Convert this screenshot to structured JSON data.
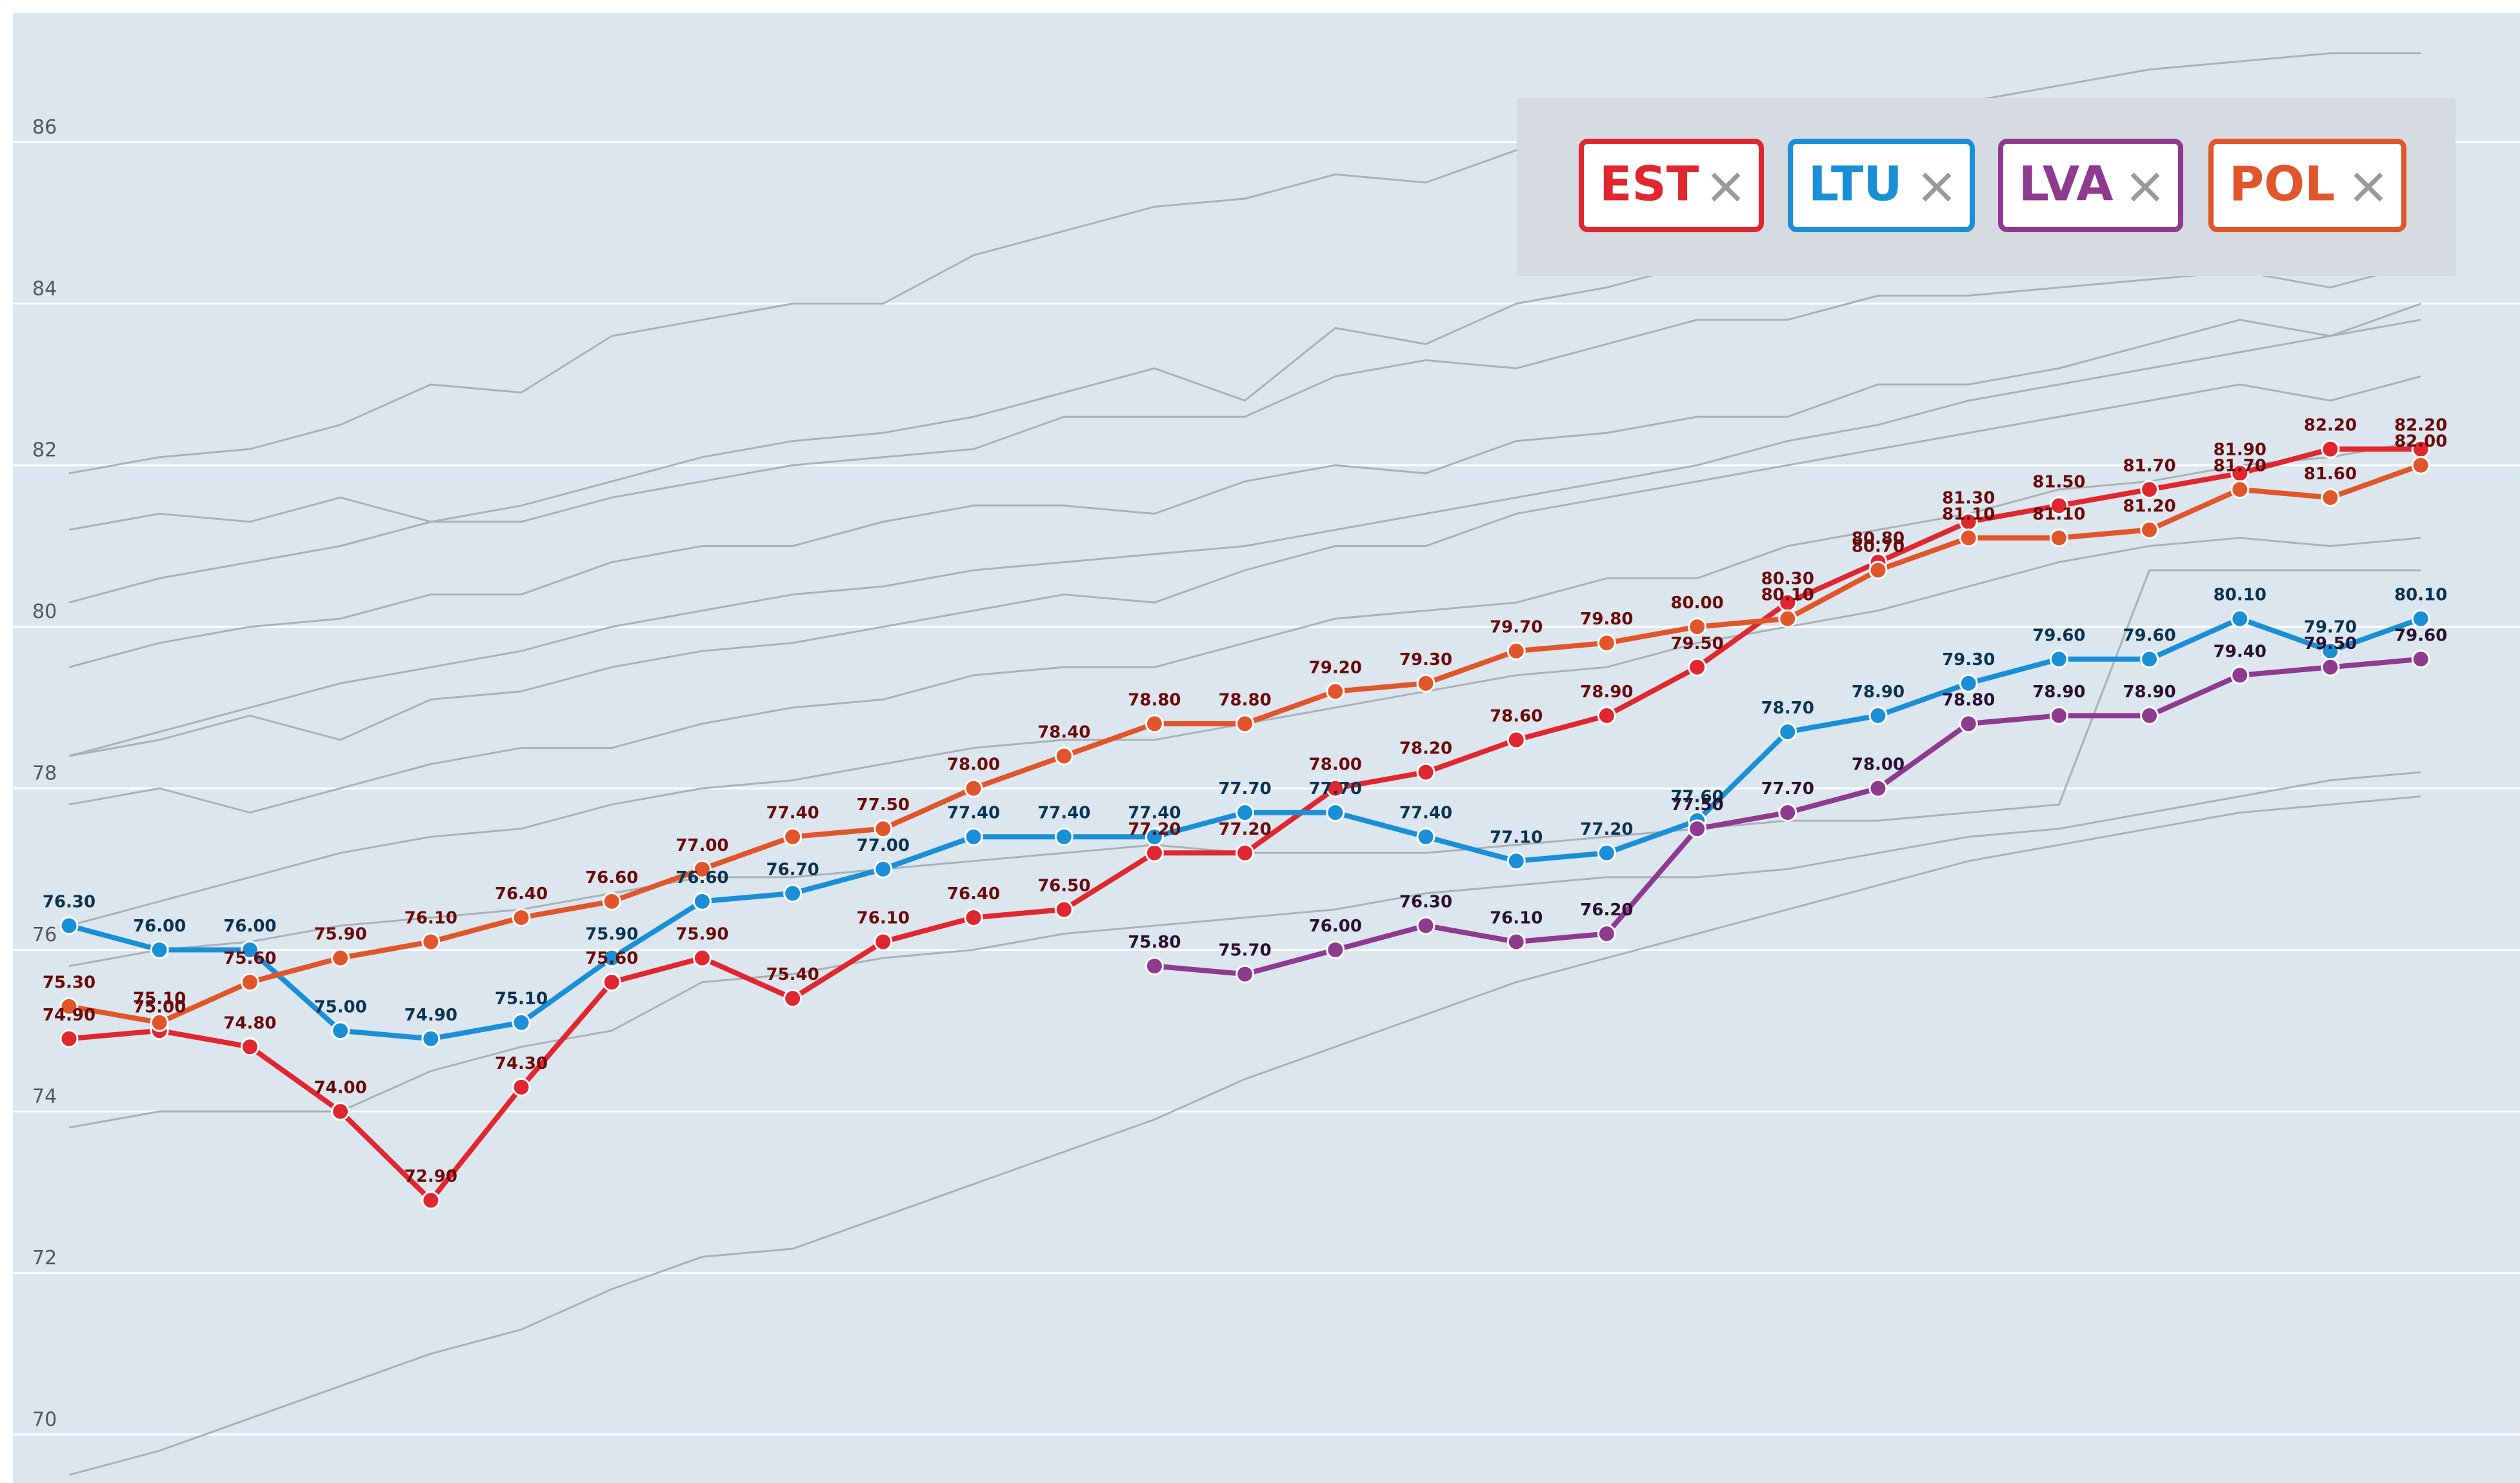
{
  "chart_data": {
    "type": "line",
    "categories": [
      null,
      null,
      null,
      null,
      null,
      null,
      null,
      null,
      null,
      null,
      null,
      null,
      null,
      null,
      null,
      null,
      null,
      null,
      null,
      null,
      null,
      null,
      null,
      null,
      null,
      null,
      null
    ],
    "ylim": [
      69.4,
      87.6
    ],
    "yticks": [
      70,
      72,
      74,
      76,
      78,
      80,
      82,
      84,
      86
    ],
    "grid": true,
    "legend": {
      "position": "top-right"
    },
    "series": [
      {
        "name": "EST",
        "color": "#e0262f",
        "label_color": "#6b0a0a",
        "values": [
          74.9,
          75.0,
          74.8,
          74.0,
          72.9,
          74.3,
          75.6,
          75.9,
          75.4,
          76.1,
          76.4,
          76.5,
          77.2,
          77.2,
          78.0,
          78.2,
          78.6,
          78.9,
          79.5,
          80.3,
          80.8,
          81.3,
          81.5,
          81.7,
          81.9,
          82.2,
          82.2
        ],
        "value_labels": [
          "74.90",
          "75.00",
          "74.80",
          "74.00",
          "72.90",
          "74.30",
          "75.60",
          "75.90",
          "75.40",
          "76.10",
          "76.40",
          "76.50",
          "77.20",
          "77.20",
          "78.00",
          "78.20",
          "78.60",
          "78.90",
          "79.50",
          "80.30",
          "80.80",
          "81.30",
          "81.50",
          "81.70",
          "81.90",
          "82.20",
          "82.20"
        ]
      },
      {
        "name": "LTU",
        "color": "#1a8fd6",
        "label_color": "#0b3350",
        "values": [
          76.3,
          76.0,
          76.0,
          75.0,
          74.9,
          75.1,
          75.9,
          76.6,
          76.7,
          77.0,
          77.4,
          77.4,
          77.4,
          77.7,
          77.7,
          77.4,
          77.1,
          77.2,
          77.6,
          78.7,
          78.9,
          79.3,
          79.6,
          79.6,
          80.1,
          79.7,
          80.1
        ],
        "value_labels": [
          "76.30",
          "76.00",
          "76.00",
          "75.00",
          "74.90",
          "75.10",
          "75.90",
          "76.60",
          "76.70",
          "77.00",
          "77.40",
          "77.40",
          "77.40",
          "77.70",
          "77.70",
          "77.40",
          "77.10",
          "77.20",
          "77.60",
          "78.70",
          "78.90",
          "79.30",
          "79.60",
          "79.60",
          "80.10",
          "79.70",
          "80.10"
        ]
      },
      {
        "name": "LVA",
        "color": "#8e3a8e",
        "label_color": "#2a1030",
        "values": [
          null,
          null,
          null,
          null,
          null,
          null,
          null,
          null,
          null,
          null,
          null,
          null,
          75.8,
          75.7,
          76.0,
          76.3,
          76.1,
          76.2,
          77.5,
          77.7,
          78.0,
          78.8,
          78.9,
          78.9,
          79.4,
          79.5,
          79.6
        ],
        "value_labels": [
          null,
          null,
          null,
          null,
          null,
          null,
          null,
          null,
          null,
          null,
          null,
          null,
          "75.80",
          "75.70",
          "76.00",
          "76.30",
          "76.10",
          "76.20",
          "77.50",
          "77.70",
          "78.00",
          "78.80",
          "78.90",
          "78.90",
          "79.40",
          "79.50",
          "79.60"
        ]
      },
      {
        "name": "POL",
        "color": "#e0562a",
        "label_color": "#6b0a0a",
        "values": [
          75.3,
          75.1,
          75.6,
          75.9,
          76.1,
          76.4,
          76.6,
          77.0,
          77.4,
          77.5,
          78.0,
          78.4,
          78.8,
          78.8,
          79.2,
          79.3,
          79.7,
          79.8,
          80.0,
          80.1,
          80.7,
          81.1,
          81.1,
          81.2,
          81.7,
          81.6,
          82.0
        ],
        "value_labels": [
          "75.30",
          "75.10",
          "75.60",
          "75.90",
          "76.10",
          "76.40",
          "76.60",
          "77.00",
          "77.40",
          "77.50",
          "78.00",
          "78.40",
          "78.80",
          "78.80",
          "79.20",
          "79.30",
          "79.70",
          "79.80",
          "80.00",
          "80.10",
          "80.70",
          "81.10",
          "81.10",
          "81.20",
          "81.70",
          "81.60",
          "82.00"
        ]
      }
    ],
    "background_color": "#a9b1b8",
    "background_series": [
      {
        "values": [
          81.9,
          82.1,
          82.2,
          82.5,
          83.0,
          82.9,
          83.6,
          83.8,
          84.0,
          84.0,
          84.6,
          84.9,
          85.2,
          85.3,
          85.6,
          85.5,
          85.9,
          86.0,
          86.2,
          86.3,
          86.5,
          86.5,
          86.7,
          86.9,
          87.0,
          87.1,
          87.1
        ]
      },
      {
        "values": [
          69.5,
          69.8,
          70.2,
          70.6,
          71.0,
          71.3,
          71.8,
          72.2,
          72.3,
          72.7,
          73.1,
          73.5,
          73.9,
          74.4,
          74.8,
          75.2,
          75.6,
          75.9,
          76.2,
          76.5,
          76.8,
          77.1,
          77.3,
          77.5,
          77.7,
          77.8,
          77.9
        ]
      },
      {
        "values": [
          73.8,
          74.0,
          74.0,
          74.0,
          74.5,
          74.8,
          75.0,
          75.6,
          75.7,
          75.9,
          76.0,
          76.2,
          76.3,
          76.4,
          76.5,
          76.7,
          76.8,
          76.9,
          76.9,
          77.0,
          77.2,
          77.4,
          77.5,
          77.7,
          77.9,
          78.1,
          78.2
        ]
      },
      {
        "values": [
          78.4,
          78.7,
          79.0,
          79.3,
          79.5,
          79.7,
          80.0,
          80.2,
          80.4,
          80.5,
          80.7,
          80.8,
          80.9,
          81.0,
          81.2,
          81.4,
          81.6,
          81.8,
          82.0,
          82.3,
          82.5,
          82.8,
          83.0,
          83.2,
          83.4,
          83.6,
          83.8
        ]
      },
      {
        "values": [
          80.3,
          80.6,
          80.8,
          81.0,
          81.3,
          81.3,
          81.6,
          81.8,
          82.0,
          82.1,
          82.2,
          82.6,
          82.6,
          82.6,
          83.1,
          83.3,
          83.2,
          83.5,
          83.8,
          83.8,
          84.1,
          84.1,
          84.2,
          84.3,
          84.4,
          84.2,
          84.5
        ]
      },
      {
        "values": [
          79.5,
          79.8,
          80.0,
          80.1,
          80.4,
          80.4,
          80.8,
          81.0,
          81.0,
          81.3,
          81.5,
          81.5,
          81.4,
          81.8,
          82.0,
          81.9,
          82.3,
          82.4,
          82.6,
          82.6,
          83.0,
          83.0,
          83.2,
          83.5,
          83.8,
          83.6,
          84.0
        ]
      },
      {
        "values": [
          77.8,
          78.0,
          77.7,
          78.0,
          78.3,
          78.5,
          78.5,
          78.8,
          79.0,
          79.1,
          79.4,
          79.5,
          79.5,
          79.8,
          80.1,
          80.2,
          80.3,
          80.6,
          80.6,
          81.0,
          81.2,
          81.4,
          81.7,
          81.8,
          82.0,
          82.1,
          82.3
        ]
      },
      {
        "values": [
          76.3,
          76.6,
          76.9,
          77.2,
          77.4,
          77.5,
          77.8,
          78.0,
          78.1,
          78.3,
          78.5,
          78.6,
          78.6,
          78.8,
          79.0,
          79.2,
          79.4,
          79.5,
          79.8,
          80.0,
          80.2,
          80.5,
          80.8,
          81.0,
          81.1,
          81.0,
          81.1
        ]
      },
      {
        "values": [
          81.2,
          81.4,
          81.3,
          81.6,
          81.3,
          81.5,
          81.8,
          82.1,
          82.3,
          82.4,
          82.6,
          82.9,
          83.2,
          82.8,
          83.7,
          83.5,
          84.0,
          84.2,
          84.5,
          84.6,
          84.9,
          85.0,
          85.3,
          85.4,
          85.5,
          85.6,
          85.8
        ]
      },
      {
        "values": [
          75.8,
          76.0,
          76.1,
          76.3,
          76.4,
          76.5,
          76.7,
          76.9,
          76.9,
          77.0,
          77.1,
          77.2,
          77.3,
          77.2,
          77.2,
          77.2,
          77.3,
          77.4,
          77.5,
          77.6,
          77.6,
          77.7,
          77.8,
          80.7,
          80.7,
          80.7,
          80.7
        ]
      },
      {
        "values": [
          78.4,
          78.6,
          78.9,
          78.6,
          79.1,
          79.2,
          79.5,
          79.7,
          79.8,
          80.0,
          80.2,
          80.4,
          80.3,
          80.7,
          81.0,
          81.0,
          81.4,
          81.6,
          81.8,
          82.0,
          82.2,
          82.4,
          82.6,
          82.8,
          83.0,
          82.8,
          83.1
        ]
      }
    ]
  }
}
